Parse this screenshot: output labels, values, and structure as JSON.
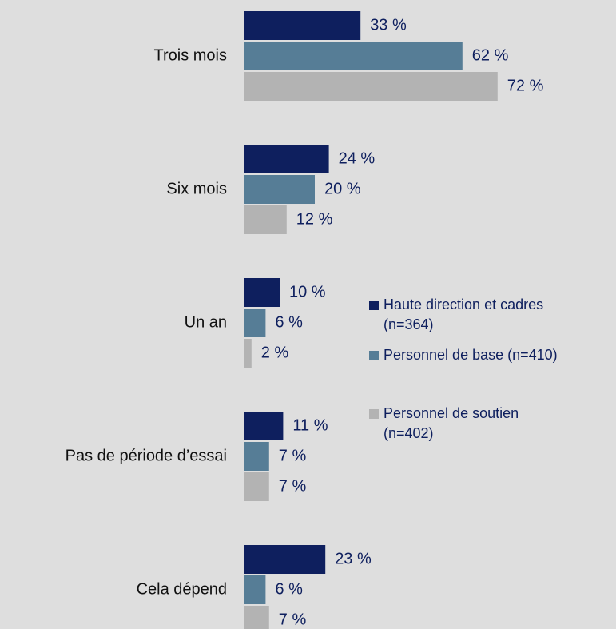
{
  "chart_data": {
    "type": "barh",
    "categories": [
      "Trois mois",
      "Six mois",
      "Un an",
      "Pas de période d’essai",
      "Cela dépend"
    ],
    "series": [
      {
        "name": "Haute direction et cadres (n=364)",
        "color": "#0e1f5e",
        "values": [
          33,
          24,
          10,
          11,
          23
        ],
        "value_labels": [
          "33 %",
          "24 %",
          "10 %",
          "11 %",
          "23 %"
        ]
      },
      {
        "name": "Personnel de base (n=410)",
        "color": "#567d96",
        "values": [
          62,
          20,
          6,
          7,
          6
        ],
        "value_labels": [
          "62 %",
          "20 %",
          "6 %",
          "7 %",
          "6 %"
        ]
      },
      {
        "name": "Personnel de soutien (n=402)",
        "color": "#b3b3b3",
        "values": [
          72,
          12,
          2,
          7,
          7
        ],
        "value_labels": [
          "72 %",
          "12 %",
          "2 %",
          "7 %",
          "7 %"
        ]
      }
    ],
    "legend": "right"
  }
}
